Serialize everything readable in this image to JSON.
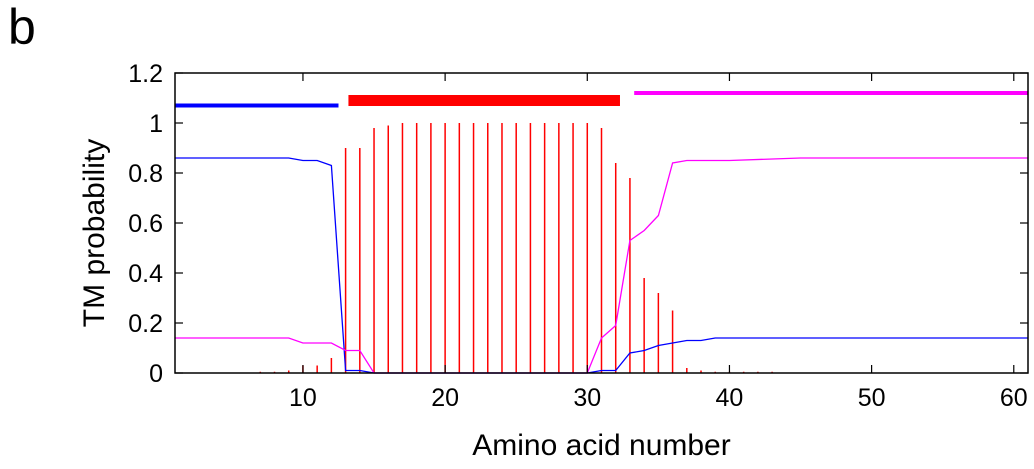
{
  "panel_letter": "b",
  "chart_data": {
    "type": "line",
    "title": "",
    "xlabel": "Amino acid number",
    "ylabel": "TM probability",
    "xlim": [
      1,
      61
    ],
    "ylim": [
      0,
      1.2
    ],
    "xticks": [
      10,
      20,
      30,
      40,
      50,
      60
    ],
    "yticks": [
      0,
      0.2,
      0.4,
      0.6,
      0.8,
      1,
      1.2
    ],
    "ytick_labels": [
      "0",
      "0.2",
      "0.4",
      "0.6",
      "0.8",
      "1",
      "1.2"
    ],
    "grid": false,
    "legend": "none",
    "colors": {
      "inside": "#0000ff",
      "outside": "#ff00ff",
      "tm": "#ff0000"
    },
    "series": [
      {
        "color": "#0000ff",
        "x": [
          1,
          2,
          3,
          4,
          5,
          6,
          7,
          8,
          9,
          10,
          11,
          12,
          13,
          14,
          15,
          16,
          17,
          18,
          19,
          20,
          21,
          22,
          23,
          24,
          25,
          26,
          27,
          28,
          29,
          30,
          31,
          32,
          33,
          34,
          35,
          36,
          37,
          38,
          39,
          40,
          45,
          50,
          55,
          60,
          61
        ],
        "y": [
          0.86,
          0.86,
          0.86,
          0.86,
          0.86,
          0.86,
          0.86,
          0.86,
          0.86,
          0.85,
          0.85,
          0.83,
          0.01,
          0.01,
          0.0,
          0.0,
          0.0,
          0.0,
          0.0,
          0.0,
          0.0,
          0.0,
          0.0,
          0.0,
          0.0,
          0.0,
          0.0,
          0.0,
          0.0,
          0.0,
          0.01,
          0.01,
          0.08,
          0.09,
          0.11,
          0.12,
          0.13,
          0.13,
          0.14,
          0.14,
          0.14,
          0.14,
          0.14,
          0.14,
          0.14
        ]
      },
      {
        "color": "#ff00ff",
        "x": [
          1,
          2,
          3,
          4,
          5,
          6,
          7,
          8,
          9,
          10,
          11,
          12,
          13,
          14,
          15,
          16,
          17,
          18,
          19,
          20,
          21,
          22,
          23,
          24,
          25,
          26,
          27,
          28,
          29,
          30,
          31,
          32,
          33,
          34,
          35,
          36,
          37,
          38,
          39,
          40,
          45,
          50,
          55,
          60,
          61
        ],
        "y": [
          0.14,
          0.14,
          0.14,
          0.14,
          0.14,
          0.14,
          0.14,
          0.14,
          0.14,
          0.12,
          0.12,
          0.12,
          0.09,
          0.09,
          0.0,
          0.0,
          0.0,
          0.0,
          0.0,
          0.0,
          0.0,
          0.0,
          0.0,
          0.0,
          0.0,
          0.0,
          0.0,
          0.0,
          0.0,
          0.0,
          0.14,
          0.19,
          0.53,
          0.57,
          0.63,
          0.84,
          0.85,
          0.85,
          0.85,
          0.85,
          0.86,
          0.86,
          0.86,
          0.86,
          0.86
        ]
      }
    ],
    "tm_bars": {
      "color": "#ff0000",
      "x": [
        3,
        4,
        5,
        6,
        7,
        8,
        9,
        10,
        11,
        12,
        13,
        14,
        15,
        16,
        17,
        18,
        19,
        20,
        21,
        22,
        23,
        24,
        25,
        26,
        27,
        28,
        29,
        30,
        31,
        32,
        33,
        34,
        35,
        36,
        37,
        38,
        39,
        40,
        41,
        42,
        43
      ],
      "values": [
        0.0,
        0.0,
        0.0,
        0.0,
        0.005,
        0.005,
        0.01,
        0.03,
        0.03,
        0.06,
        0.9,
        0.9,
        0.98,
        0.99,
        1.0,
        1.0,
        1.0,
        1.0,
        1.0,
        1.0,
        1.0,
        1.0,
        1.0,
        1.0,
        1.0,
        1.0,
        1.0,
        1.0,
        0.98,
        0.84,
        0.78,
        0.38,
        0.32,
        0.25,
        0.02,
        0.01,
        0.005,
        0.005,
        0.005,
        0.005,
        0.005
      ]
    },
    "topology_segments": [
      {
        "color": "#0000ff",
        "x_start": 1,
        "x_end": 12.5,
        "y": 1.07,
        "weight": "thin"
      },
      {
        "color": "#ff0000",
        "x_start": 13.2,
        "x_end": 32.3,
        "y": 1.09,
        "weight": "thick"
      },
      {
        "color": "#ff00ff",
        "x_start": 33.3,
        "x_end": 61,
        "y": 1.12,
        "weight": "thin"
      }
    ]
  }
}
